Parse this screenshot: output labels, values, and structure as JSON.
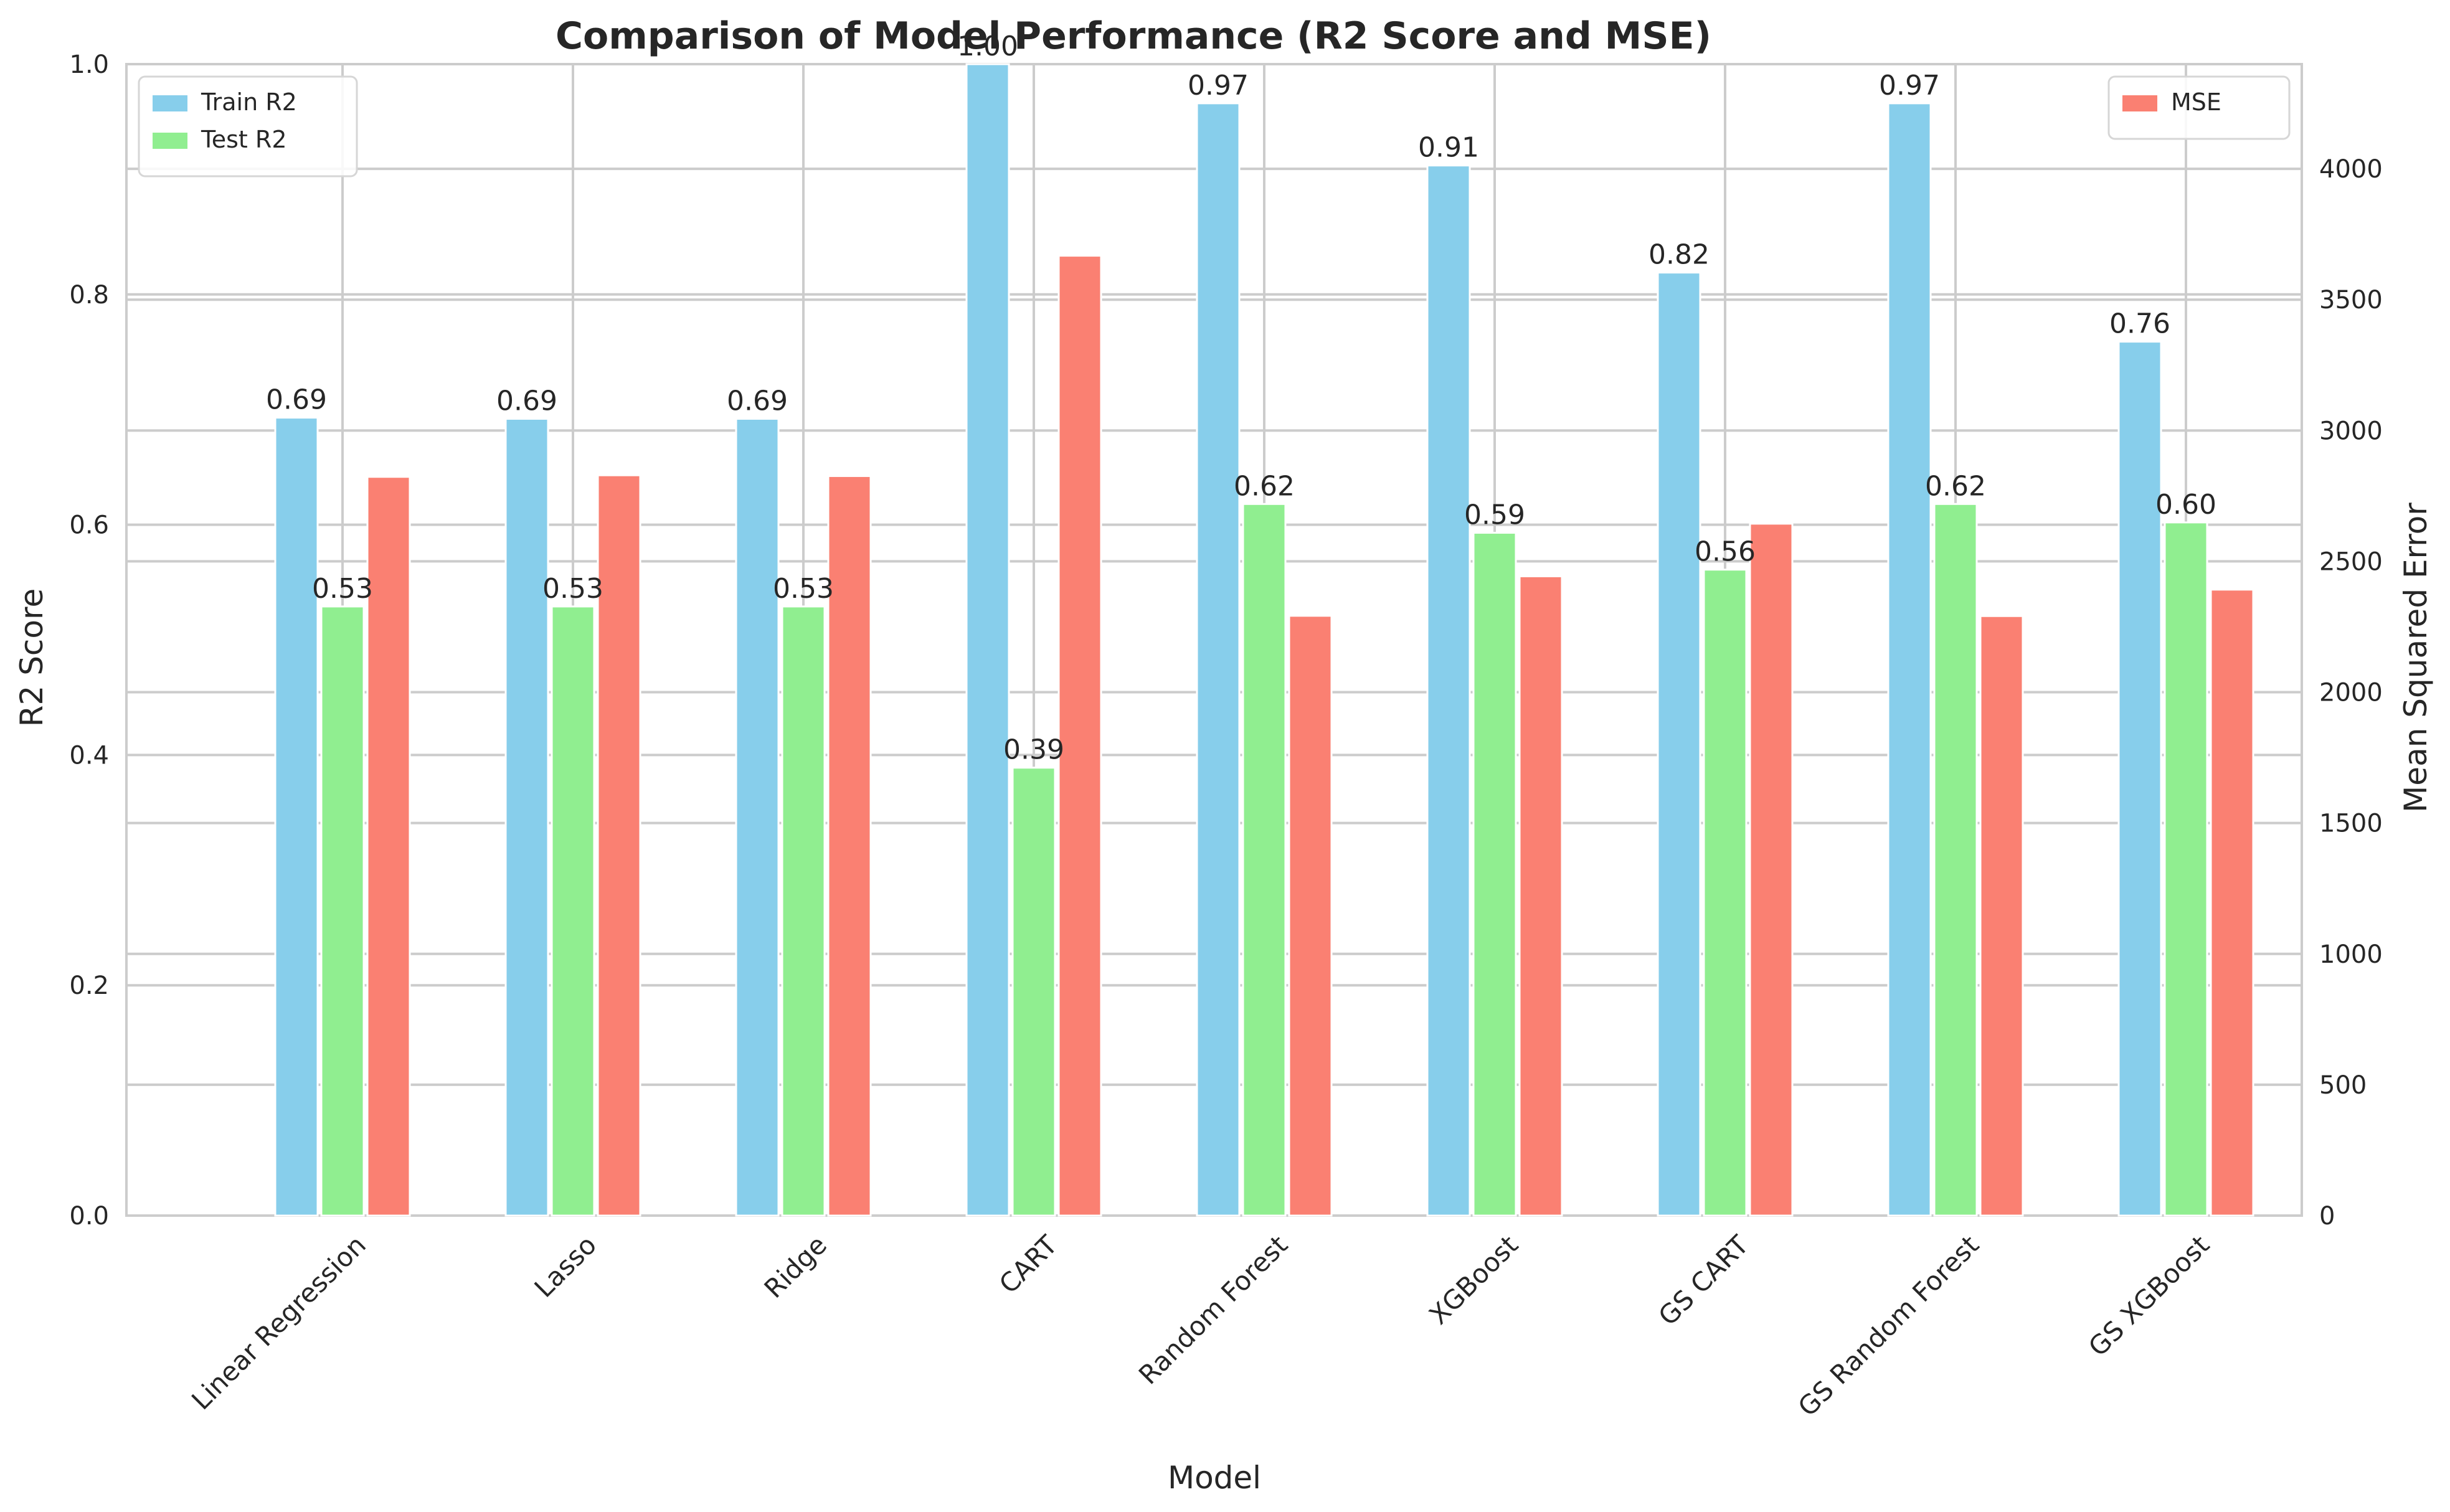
{
  "chart_data": {
    "type": "bar",
    "title": "Comparison of Model Performance (R2 Score and MSE)",
    "xlabel": "Model",
    "ylabel": "R2 Score",
    "y2label": "Mean Squared Error",
    "categories": [
      "Linear Regression",
      "Lasso",
      "Ridge",
      "CART",
      "Random Forest",
      "XGBoost",
      "GS CART",
      "GS Random Forest",
      "GS XGBoost"
    ],
    "ylim": [
      0,
      1.0
    ],
    "yticks": [
      0.0,
      0.2,
      0.4,
      0.6,
      0.8,
      1.0
    ],
    "ytick_labels": [
      "0.0",
      "0.2",
      "0.4",
      "0.6",
      "0.8",
      "1.0"
    ],
    "y2lim": [
      0,
      4400
    ],
    "y2ticks": [
      0,
      500,
      1000,
      1500,
      2000,
      2500,
      3000,
      3500,
      4000
    ],
    "y2tick_labels": [
      "0",
      "500",
      "1000",
      "1500",
      "2000",
      "2500",
      "3000",
      "3500",
      "4000"
    ],
    "grid": true,
    "series": [
      {
        "name": "Train R2",
        "axis": "left",
        "color": "#87CEEB",
        "values": [
          0.693,
          0.692,
          0.692,
          1.0,
          0.966,
          0.912,
          0.819,
          0.966,
          0.759
        ],
        "labels": [
          "0.69",
          "0.69",
          "0.69",
          "1.00",
          "0.97",
          "0.91",
          "0.82",
          "0.97",
          "0.76"
        ]
      },
      {
        "name": "Test R2",
        "axis": "left",
        "color": "#90EE90",
        "values": [
          0.529,
          0.529,
          0.529,
          0.389,
          0.618,
          0.593,
          0.561,
          0.618,
          0.602
        ],
        "labels": [
          "0.53",
          "0.53",
          "0.53",
          "0.39",
          "0.62",
          "0.59",
          "0.56",
          "0.62",
          "0.60"
        ]
      },
      {
        "name": "MSE",
        "axis": "right",
        "color": "#FA8072",
        "values": [
          2823,
          2829,
          2826,
          3668,
          2292,
          2443,
          2644,
          2291,
          2392
        ]
      }
    ],
    "legends": [
      {
        "placement": "top-left",
        "entries": [
          "Train R2",
          "Test R2"
        ]
      },
      {
        "placement": "top-right",
        "entries": [
          "MSE"
        ]
      }
    ]
  }
}
